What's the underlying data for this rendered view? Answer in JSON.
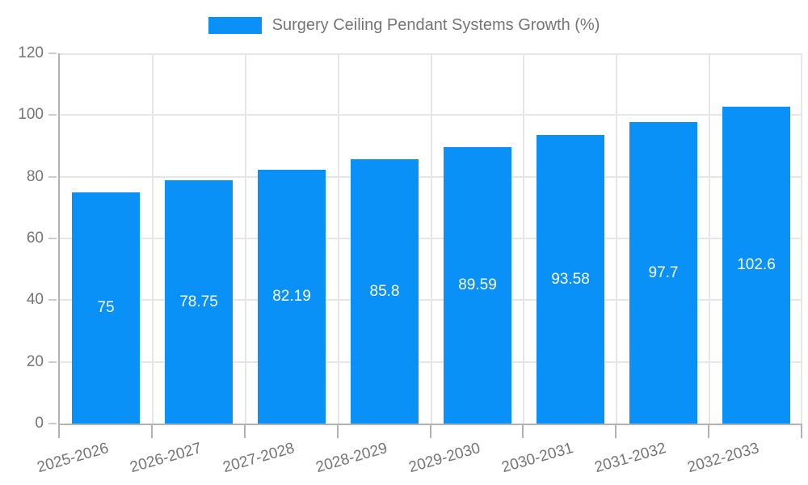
{
  "legend": {
    "label": "Surgery Ceiling Pendant Systems Growth (%)"
  },
  "chart_data": {
    "type": "bar",
    "title": "Surgery Ceiling Pendant Systems Growth (%)",
    "series_name": "Surgery Ceiling Pendant Systems Growth (%)",
    "categories": [
      "2025-2026",
      "2026-2027",
      "2027-2028",
      "2028-2029",
      "2029-2030",
      "2030-2031",
      "2031-2032",
      "2032-2033"
    ],
    "values": [
      75,
      78.75,
      82.19,
      85.8,
      89.59,
      93.58,
      97.7,
      102.6
    ],
    "value_labels": [
      "75",
      "78.75",
      "82.19",
      "85.8",
      "89.59",
      "93.58",
      "97.7",
      "102.6"
    ],
    "xlabel": "",
    "ylabel": "",
    "ylim": [
      0,
      120
    ],
    "yticks": [
      0,
      20,
      40,
      60,
      80,
      100,
      120
    ],
    "grid": true,
    "legend_position": "top",
    "bar_color": "#0991f8",
    "bar_label_color": "#ffffff",
    "axis_text_color": "#757575",
    "gridline_color": "#e6e6e6",
    "axis_line_color": "#b2b2b2"
  }
}
